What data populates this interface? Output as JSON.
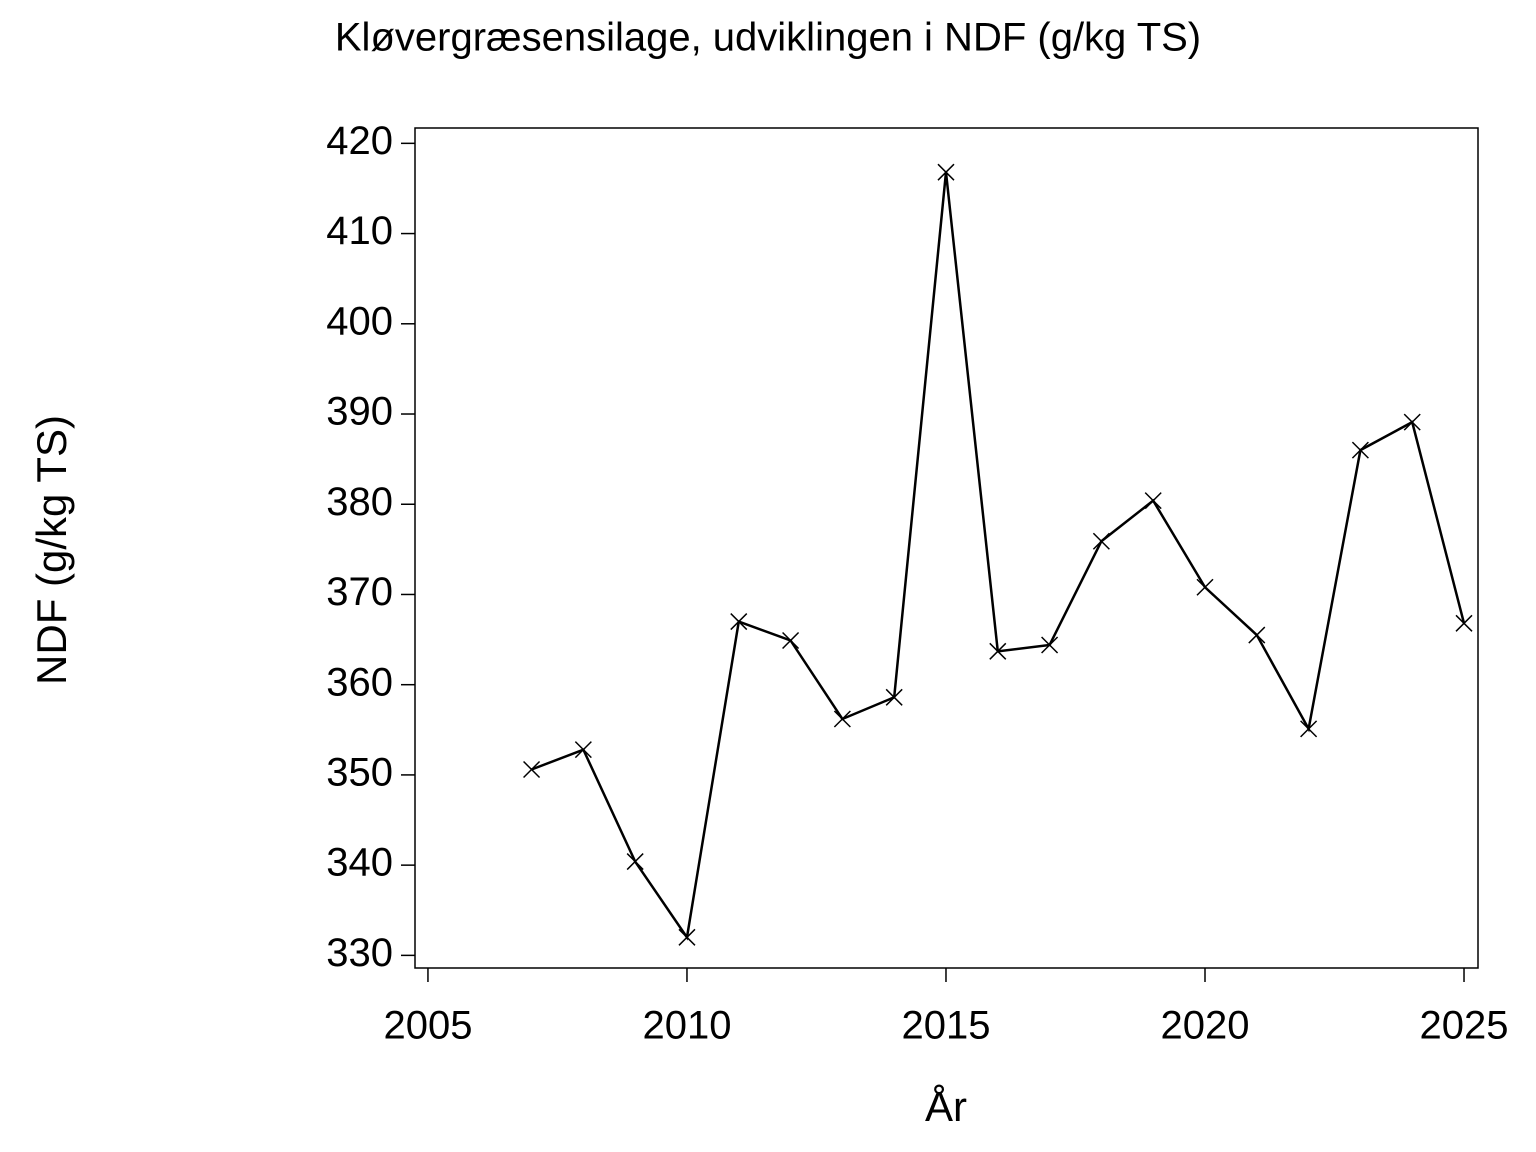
{
  "chart_data": {
    "type": "line",
    "title": "Kløvergræsensilage,  udviklingen  i  NDF  (g/kg  TS)",
    "xlabel": "År",
    "ylabel": "NDF  (g/kg  TS)",
    "x": [
      2007,
      2008,
      2009,
      2010,
      2011,
      2012,
      2013,
      2014,
      2015,
      2016,
      2017,
      2018,
      2019,
      2020,
      2021,
      2022,
      2023,
      2024,
      2025
    ],
    "series": [
      {
        "color": "#000000",
        "values": [
          350.6,
          352.8,
          340.4,
          332.0,
          367.0,
          364.9,
          356.2,
          358.6,
          416.8,
          363.7,
          364.4,
          375.9,
          380.4,
          370.8,
          365.5,
          355.1,
          386.0,
          389.1,
          366.8
        ]
      }
    ],
    "xlim": [
      2004.75,
      2025.27
    ],
    "ylim": [
      328.6,
      421.7
    ],
    "xticks": [
      2005,
      2010,
      2015,
      2020,
      2025
    ],
    "yticks": [
      330,
      340,
      350,
      360,
      370,
      380,
      390,
      400,
      410,
      420
    ],
    "marker": "x",
    "grid": false
  }
}
